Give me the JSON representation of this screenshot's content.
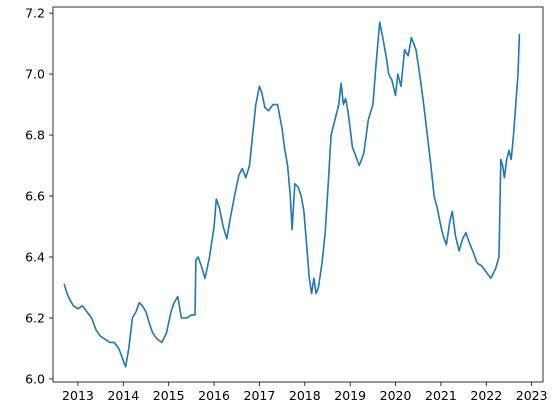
{
  "chart_data": {
    "type": "line",
    "title": "",
    "xlabel": "",
    "ylabel": "",
    "xlim": [
      2012.45,
      2023.25
    ],
    "ylim": [
      5.99,
      7.22
    ],
    "xticks": [
      2013,
      2014,
      2015,
      2016,
      2017,
      2018,
      2019,
      2020,
      2021,
      2022,
      2023
    ],
    "xtick_labels": [
      "2013",
      "2014",
      "2015",
      "2016",
      "2017",
      "2018",
      "2019",
      "2020",
      "2021",
      "2022",
      "2023"
    ],
    "yticks": [
      6.0,
      6.2,
      6.4,
      6.6,
      6.8,
      7.0,
      7.2
    ],
    "ytick_labels": [
      "6.0",
      "6.2",
      "6.4",
      "6.6",
      "6.8",
      "7.0",
      "7.2"
    ],
    "grid": false,
    "series": [
      {
        "color": "#1f77b4",
        "points": [
          [
            2012.7,
            6.31
          ],
          [
            2012.76,
            6.28
          ],
          [
            2012.82,
            6.26
          ],
          [
            2012.9,
            6.24
          ],
          [
            2013.0,
            6.23
          ],
          [
            2013.1,
            6.24
          ],
          [
            2013.2,
            6.22
          ],
          [
            2013.3,
            6.2
          ],
          [
            2013.4,
            6.16
          ],
          [
            2013.5,
            6.14
          ],
          [
            2013.6,
            6.13
          ],
          [
            2013.7,
            6.12
          ],
          [
            2013.8,
            6.12
          ],
          [
            2013.9,
            6.1
          ],
          [
            2014.0,
            6.06
          ],
          [
            2014.05,
            6.04
          ],
          [
            2014.12,
            6.1
          ],
          [
            2014.2,
            6.2
          ],
          [
            2014.28,
            6.22
          ],
          [
            2014.35,
            6.25
          ],
          [
            2014.42,
            6.24
          ],
          [
            2014.5,
            6.22
          ],
          [
            2014.58,
            6.18
          ],
          [
            2014.65,
            6.15
          ],
          [
            2014.75,
            6.13
          ],
          [
            2014.85,
            6.12
          ],
          [
            2014.95,
            6.15
          ],
          [
            2015.05,
            6.22
          ],
          [
            2015.12,
            6.25
          ],
          [
            2015.2,
            6.27
          ],
          [
            2015.28,
            6.2
          ],
          [
            2015.4,
            6.2
          ],
          [
            2015.5,
            6.21
          ],
          [
            2015.58,
            6.21
          ],
          [
            2015.6,
            6.39
          ],
          [
            2015.65,
            6.4
          ],
          [
            2015.72,
            6.37
          ],
          [
            2015.8,
            6.33
          ],
          [
            2015.9,
            6.4
          ],
          [
            2016.0,
            6.5
          ],
          [
            2016.05,
            6.59
          ],
          [
            2016.12,
            6.56
          ],
          [
            2016.2,
            6.5
          ],
          [
            2016.28,
            6.46
          ],
          [
            2016.35,
            6.52
          ],
          [
            2016.45,
            6.6
          ],
          [
            2016.55,
            6.67
          ],
          [
            2016.62,
            6.69
          ],
          [
            2016.7,
            6.66
          ],
          [
            2016.78,
            6.7
          ],
          [
            2016.85,
            6.8
          ],
          [
            2016.92,
            6.9
          ],
          [
            2017.0,
            6.96
          ],
          [
            2017.05,
            6.94
          ],
          [
            2017.12,
            6.89
          ],
          [
            2017.2,
            6.88
          ],
          [
            2017.3,
            6.9
          ],
          [
            2017.4,
            6.9
          ],
          [
            2017.5,
            6.82
          ],
          [
            2017.55,
            6.76
          ],
          [
            2017.62,
            6.7
          ],
          [
            2017.68,
            6.6
          ],
          [
            2017.72,
            6.49
          ],
          [
            2017.78,
            6.64
          ],
          [
            2017.85,
            6.63
          ],
          [
            2017.92,
            6.6
          ],
          [
            2017.98,
            6.55
          ],
          [
            2018.05,
            6.42
          ],
          [
            2018.1,
            6.33
          ],
          [
            2018.15,
            6.28
          ],
          [
            2018.2,
            6.33
          ],
          [
            2018.25,
            6.28
          ],
          [
            2018.3,
            6.3
          ],
          [
            2018.38,
            6.38
          ],
          [
            2018.45,
            6.48
          ],
          [
            2018.52,
            6.65
          ],
          [
            2018.58,
            6.8
          ],
          [
            2018.68,
            6.86
          ],
          [
            2018.75,
            6.9
          ],
          [
            2018.8,
            6.97
          ],
          [
            2018.85,
            6.9
          ],
          [
            2018.9,
            6.92
          ],
          [
            2018.95,
            6.88
          ],
          [
            2019.0,
            6.82
          ],
          [
            2019.05,
            6.76
          ],
          [
            2019.1,
            6.74
          ],
          [
            2019.2,
            6.7
          ],
          [
            2019.3,
            6.74
          ],
          [
            2019.4,
            6.85
          ],
          [
            2019.5,
            6.9
          ],
          [
            2019.58,
            7.05
          ],
          [
            2019.65,
            7.17
          ],
          [
            2019.72,
            7.12
          ],
          [
            2019.8,
            7.05
          ],
          [
            2019.85,
            7.0
          ],
          [
            2019.92,
            6.98
          ],
          [
            2020.0,
            6.93
          ],
          [
            2020.05,
            7.0
          ],
          [
            2020.12,
            6.96
          ],
          [
            2020.2,
            7.08
          ],
          [
            2020.28,
            7.06
          ],
          [
            2020.35,
            7.12
          ],
          [
            2020.45,
            7.08
          ],
          [
            2020.55,
            6.98
          ],
          [
            2020.62,
            6.9
          ],
          [
            2020.7,
            6.8
          ],
          [
            2020.78,
            6.7
          ],
          [
            2020.85,
            6.6
          ],
          [
            2020.92,
            6.56
          ],
          [
            2021.0,
            6.5
          ],
          [
            2021.05,
            6.47
          ],
          [
            2021.12,
            6.44
          ],
          [
            2021.2,
            6.52
          ],
          [
            2021.25,
            6.55
          ],
          [
            2021.32,
            6.47
          ],
          [
            2021.4,
            6.42
          ],
          [
            2021.48,
            6.46
          ],
          [
            2021.55,
            6.48
          ],
          [
            2021.62,
            6.45
          ],
          [
            2021.7,
            6.42
          ],
          [
            2021.8,
            6.38
          ],
          [
            2021.9,
            6.37
          ],
          [
            2022.0,
            6.35
          ],
          [
            2022.1,
            6.33
          ],
          [
            2022.2,
            6.36
          ],
          [
            2022.28,
            6.4
          ],
          [
            2022.32,
            6.72
          ],
          [
            2022.36,
            6.7
          ],
          [
            2022.4,
            6.66
          ],
          [
            2022.45,
            6.72
          ],
          [
            2022.5,
            6.75
          ],
          [
            2022.55,
            6.72
          ],
          [
            2022.6,
            6.8
          ],
          [
            2022.65,
            6.9
          ],
          [
            2022.7,
            7.0
          ],
          [
            2022.73,
            7.13
          ]
        ]
      }
    ]
  }
}
